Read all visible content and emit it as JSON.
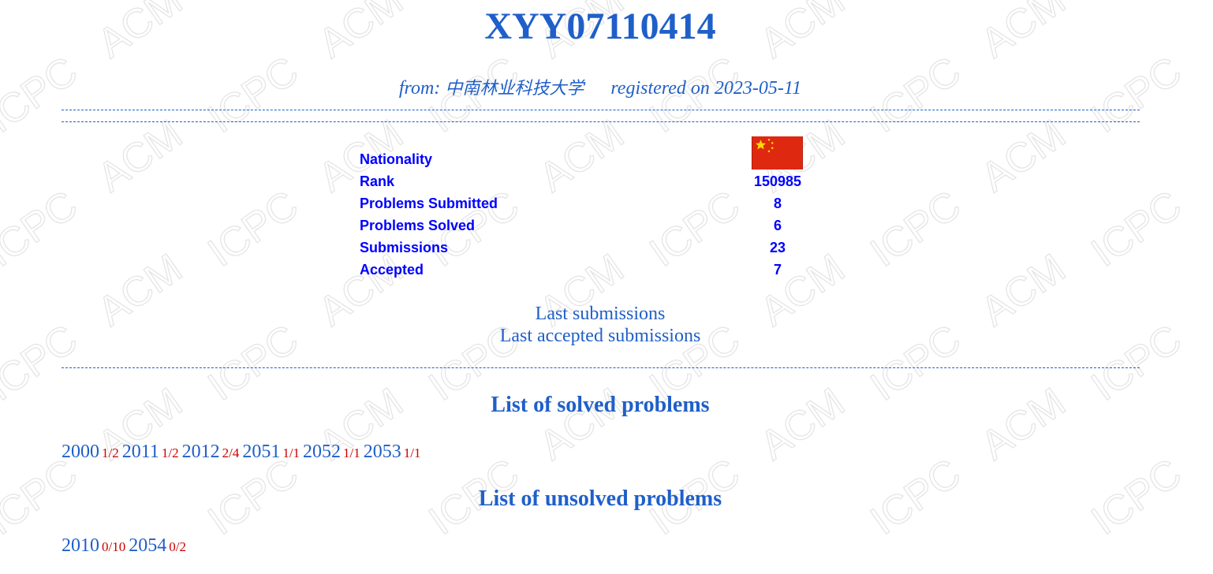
{
  "user": {
    "handle": "XYY07110414",
    "from_label": "from:",
    "institution": "中南林业科技大学",
    "registered_label": "registered on",
    "registered_date": "2023-05-11"
  },
  "stats": [
    {
      "label": "Nationality",
      "value": ""
    },
    {
      "label": "Rank",
      "value": "150985"
    },
    {
      "label": "Problems Submitted",
      "value": "8"
    },
    {
      "label": "Problems Solved",
      "value": "6"
    },
    {
      "label": "Submissions",
      "value": "23"
    },
    {
      "label": "Accepted",
      "value": "7"
    }
  ],
  "nationality_flag": "china-flag-icon",
  "links": {
    "last_submissions": "Last submissions",
    "last_accepted": "Last accepted submissions"
  },
  "solved": {
    "heading": "List of solved problems",
    "problems": [
      {
        "id": "2000",
        "ratio": "1/2"
      },
      {
        "id": "2011",
        "ratio": "1/2"
      },
      {
        "id": "2012",
        "ratio": "2/4"
      },
      {
        "id": "2051",
        "ratio": "1/1"
      },
      {
        "id": "2052",
        "ratio": "1/1"
      },
      {
        "id": "2053",
        "ratio": "1/1"
      }
    ]
  },
  "unsolved": {
    "heading": "List of unsolved problems",
    "problems": [
      {
        "id": "2010",
        "ratio": "0/10"
      },
      {
        "id": "2054",
        "ratio": "0/2"
      }
    ]
  },
  "watermark": {
    "text_a": "ACM",
    "text_b": "ICPC",
    "color": "#d0d0d0"
  },
  "colors": {
    "accent": "#1f5fc9",
    "stats": "#0000ff",
    "ratio": "#cc0000",
    "flag_red": "#de2910",
    "flag_yellow": "#ffde00"
  }
}
